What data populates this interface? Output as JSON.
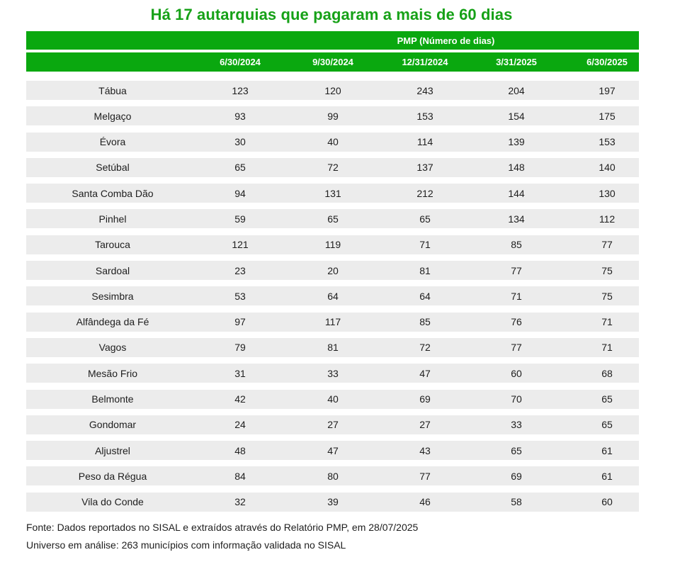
{
  "title": "Há 17 autarquias que pagaram a mais de 60 dias",
  "table": {
    "group_header": "PMP (Número de dias)",
    "columns": [
      "",
      "6/30/2024",
      "9/30/2024",
      "12/31/2024",
      "3/31/2025",
      "6/30/2025"
    ],
    "rows": [
      {
        "name": "Tábua",
        "values": [
          "123",
          "120",
          "243",
          "204",
          "197"
        ]
      },
      {
        "name": "Melgaço",
        "values": [
          "93",
          "99",
          "153",
          "154",
          "175"
        ]
      },
      {
        "name": "Évora",
        "values": [
          "30",
          "40",
          "114",
          "139",
          "153"
        ]
      },
      {
        "name": "Setúbal",
        "values": [
          "65",
          "72",
          "137",
          "148",
          "140"
        ]
      },
      {
        "name": "Santa Comba Dão",
        "values": [
          "94",
          "131",
          "212",
          "144",
          "130"
        ]
      },
      {
        "name": "Pinhel",
        "values": [
          "59",
          "65",
          "65",
          "134",
          "112"
        ]
      },
      {
        "name": "Tarouca",
        "values": [
          "121",
          "119",
          "71",
          "85",
          "77"
        ]
      },
      {
        "name": "Sardoal",
        "values": [
          "23",
          "20",
          "81",
          "77",
          "75"
        ]
      },
      {
        "name": "Sesimbra",
        "values": [
          "53",
          "64",
          "64",
          "71",
          "75"
        ]
      },
      {
        "name": "Alfândega da Fé",
        "values": [
          "97",
          "117",
          "85",
          "76",
          "71"
        ]
      },
      {
        "name": "Vagos",
        "values": [
          "79",
          "81",
          "72",
          "77",
          "71"
        ]
      },
      {
        "name": "Mesão Frio",
        "values": [
          "31",
          "33",
          "47",
          "60",
          "68"
        ]
      },
      {
        "name": "Belmonte",
        "values": [
          "42",
          "40",
          "69",
          "70",
          "65"
        ]
      },
      {
        "name": "Gondomar",
        "values": [
          "24",
          "27",
          "27",
          "33",
          "65"
        ]
      },
      {
        "name": "Aljustrel",
        "values": [
          "48",
          "47",
          "43",
          "65",
          "61"
        ]
      },
      {
        "name": "Peso da Régua",
        "values": [
          "84",
          "80",
          "77",
          "69",
          "61"
        ]
      },
      {
        "name": "Vila do Conde",
        "values": [
          "32",
          "39",
          "46",
          "58",
          "60"
        ]
      }
    ]
  },
  "footer": {
    "source": "Fonte: Dados reportados no SISAL e extraídos através do Relatório PMP, em 28/07/2025",
    "universe": "Universo em análise: 263 municípios com informação validada no SISAL"
  },
  "colors": {
    "title_green": "#16a117",
    "header_green": "#0aa80f",
    "row_bg": "#ececec"
  }
}
